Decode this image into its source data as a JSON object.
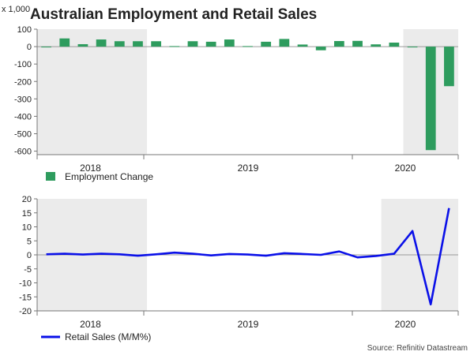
{
  "title": "Australian Employment and Retail Sales",
  "source": "Source: Refinitiv Datastream",
  "colors": {
    "bar": "#2e9c5e",
    "line": "#0a10e8",
    "shade": "#ebebeb",
    "axis": "#777777",
    "text": "#222222"
  },
  "chart_data": [
    {
      "type": "bar",
      "unit_label": "x 1,000",
      "yticks": [
        100,
        0,
        -100,
        -200,
        -300,
        -400,
        -500,
        -600
      ],
      "ylim": [
        -620,
        100
      ],
      "year_labels": [
        "2018",
        "2019",
        "2020"
      ],
      "shaded_ranges": [
        [
          0,
          6
        ],
        [
          20,
          25
        ]
      ],
      "legend": "Employment Change",
      "values": [
        -3,
        47,
        14,
        41,
        31,
        31,
        31,
        3,
        31,
        28,
        41,
        3,
        28,
        44,
        12,
        -21,
        32,
        33,
        13,
        23,
        -4,
        -594,
        -227
      ]
    },
    {
      "type": "line",
      "yticks": [
        20,
        15,
        10,
        5,
        0,
        -5,
        -10,
        -15,
        -20
      ],
      "ylim": [
        -20,
        20
      ],
      "year_labels": [
        "2018",
        "2019",
        "2020"
      ],
      "shaded_ranges": [
        [
          0,
          6
        ],
        [
          18.8,
          25
        ]
      ],
      "legend": "Retail Sales (M/M%)",
      "values": [
        0.2,
        0.4,
        0.1,
        0.4,
        0.2,
        -0.3,
        0.2,
        0.8,
        0.4,
        -0.2,
        0.3,
        0.1,
        -0.3,
        0.6,
        0.3,
        0.0,
        1.2,
        -0.9,
        -0.4,
        0.4,
        8.5,
        -17.7,
        16.7
      ]
    }
  ]
}
